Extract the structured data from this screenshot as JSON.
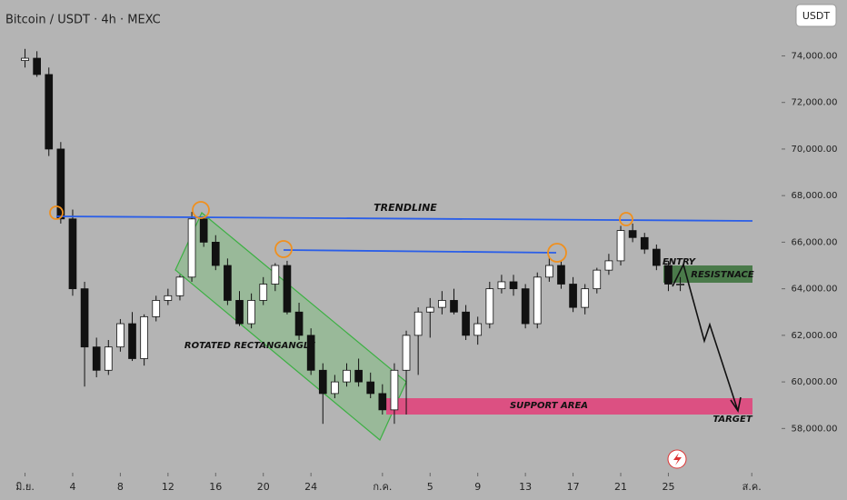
{
  "chart_data": {
    "type": "candlestick",
    "title": "Bitcoin / USDT · 4h · MEXC",
    "currency": "USDT",
    "x": [
      0,
      1,
      2,
      3,
      4,
      5,
      6,
      7,
      8,
      9,
      10,
      11,
      12,
      13,
      14,
      15,
      16,
      17,
      18,
      19,
      20,
      21,
      22,
      23,
      24,
      25,
      26,
      27,
      28,
      29,
      30,
      31,
      32,
      33,
      34,
      35,
      36,
      37,
      38,
      39,
      40,
      41,
      42,
      43,
      44,
      45,
      46,
      47,
      48,
      49,
      50,
      51,
      52,
      53,
      54,
      55
    ],
    "open": [
      73800,
      73900,
      73200,
      70000,
      67000,
      64000,
      61500,
      60500,
      61500,
      62500,
      61000,
      62800,
      63500,
      63700,
      64500,
      67000,
      66000,
      65000,
      63500,
      62500,
      63500,
      64200,
      65000,
      63000,
      62000,
      60500,
      59500,
      60000,
      60500,
      60000,
      59500,
      58800,
      60500,
      62000,
      63000,
      63200,
      63500,
      63000,
      62000,
      62500,
      64000,
      64300,
      64000,
      62500,
      64500,
      65000,
      64200,
      63200,
      64000,
      64800,
      65200,
      66500,
      66200,
      65700,
      65000,
      64200
    ],
    "high": [
      74300,
      74200,
      73500,
      70300,
      67400,
      64300,
      61900,
      61800,
      62700,
      63000,
      62900,
      63700,
      64000,
      64600,
      67300,
      67100,
      66300,
      65300,
      63900,
      63800,
      64500,
      65100,
      65200,
      63400,
      62300,
      60800,
      60300,
      60800,
      61000,
      60400,
      59900,
      60800,
      62200,
      63200,
      63600,
      63900,
      64000,
      63300,
      62800,
      64300,
      64600,
      64600,
      64200,
      64700,
      65400,
      65200,
      64500,
      64200,
      64900,
      65500,
      66700,
      66800,
      66400,
      65900,
      65200,
      64500
    ],
    "low": [
      73500,
      73100,
      69700,
      66800,
      63700,
      59800,
      60200,
      60300,
      61300,
      60900,
      60700,
      62600,
      63300,
      63500,
      64300,
      65800,
      64800,
      63300,
      62400,
      62300,
      63300,
      63900,
      62900,
      61800,
      60300,
      58200,
      59300,
      59800,
      59800,
      59300,
      58600,
      58200,
      58600,
      60300,
      61900,
      62900,
      62900,
      61800,
      61600,
      62300,
      63800,
      63700,
      62300,
      62300,
      64300,
      64000,
      63000,
      62900,
      63800,
      64600,
      65000,
      66000,
      65500,
      64800,
      63900,
      63900
    ],
    "close": [
      73900,
      73200,
      70000,
      67000,
      64000,
      61500,
      60500,
      61500,
      62500,
      61000,
      62800,
      63500,
      63700,
      64500,
      67000,
      66000,
      65000,
      63500,
      62500,
      63500,
      64200,
      65000,
      63000,
      62000,
      60500,
      59500,
      60000,
      60500,
      60000,
      59500,
      58800,
      60500,
      62000,
      63000,
      63200,
      63500,
      63000,
      62000,
      62500,
      64000,
      64300,
      64000,
      62500,
      64500,
      65000,
      64200,
      63200,
      64000,
      64800,
      65200,
      66500,
      66200,
      65700,
      65000,
      64200,
      64200
    ],
    "up_color": "#ffffff",
    "down_color": "#111111",
    "xlim": [
      -2.1,
      63.5
    ],
    "xticks": [
      {
        "value": 0,
        "label": "มิ.ย."
      },
      4,
      8,
      12,
      16,
      20,
      24,
      {
        "value": 30,
        "label": "ก.ค."
      },
      {
        "value": 34,
        "label": "5"
      },
      {
        "value": 38,
        "label": "9"
      },
      {
        "value": 42,
        "label": "13"
      },
      {
        "value": 46,
        "label": "17"
      },
      {
        "value": 50,
        "label": "21"
      },
      {
        "value": 54,
        "label": "25"
      },
      {
        "value": 61,
        "label": "ส.ค."
      }
    ],
    "ylim": [
      56100,
      76400
    ],
    "yticks": [
      {
        "value": 58000,
        "label": "58,000.00"
      },
      {
        "value": 60000,
        "label": "60,000.00"
      },
      {
        "value": 62000,
        "label": "62,000.00"
      },
      {
        "value": 64000,
        "label": "64,000.00"
      },
      {
        "value": 66000,
        "label": "66,000.00"
      },
      {
        "value": 68000,
        "label": "68,000.00"
      },
      {
        "value": 70000,
        "label": "70,000.00"
      },
      {
        "value": 72000,
        "label": "72,000.00"
      },
      {
        "value": 74000,
        "label": "74,000.00"
      }
    ],
    "annotations": [
      "TRENDLINE",
      "ROTATED RECTANGANGLE",
      "ENTRY",
      "RESISTNACE",
      "SUPPORT AREA",
      "TARGET"
    ]
  }
}
